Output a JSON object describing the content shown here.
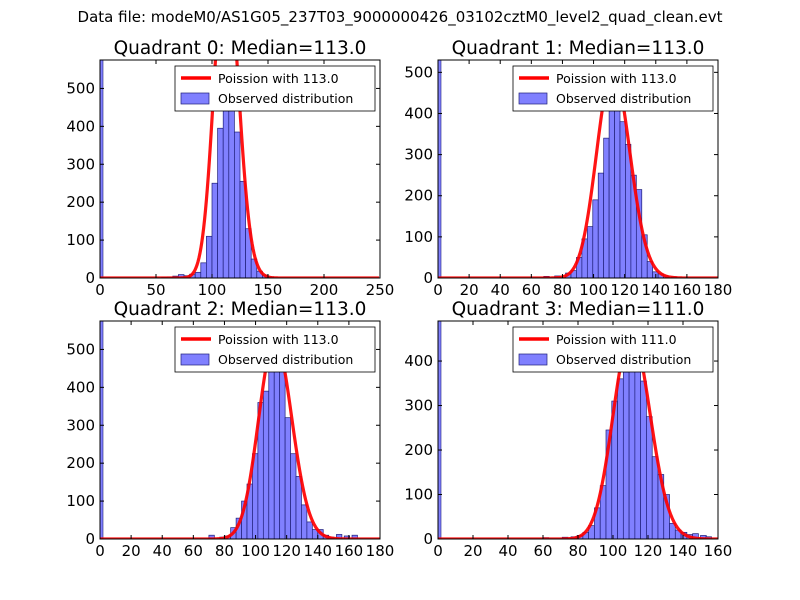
{
  "figure": {
    "suptitle": "Data file: modeM0/AS1G05_237T03_9000000426_03102cztM0_level2_quad_clean.evt",
    "colors": {
      "hist_fill": "#8080ff",
      "hist_edge": "#1f1f7a",
      "curve": "#ff0000",
      "text": "#000000",
      "background": "#ffffff"
    }
  },
  "chart_data": [
    {
      "type": "bar",
      "title": "Quadrant 0: Median=113.0",
      "xlim": [
        0,
        250
      ],
      "ylim": [
        0,
        575
      ],
      "xticks": [
        0,
        50,
        100,
        150,
        200,
        250
      ],
      "yticks": [
        0,
        100,
        200,
        300,
        400,
        500
      ],
      "legend": [
        "Poission with 113.0",
        "Observed distribution"
      ],
      "legend_location": "upper right",
      "poisson_mean": 113.0,
      "poisson_scale": 22920,
      "bin_width": 5,
      "edge_bar": 575,
      "bins": [
        {
          "x": 55,
          "v": 2
        },
        {
          "x": 60,
          "v": 3
        },
        {
          "x": 65,
          "v": 5
        },
        {
          "x": 70,
          "v": 9
        },
        {
          "x": 75,
          "v": 6
        },
        {
          "x": 80,
          "v": 10
        },
        {
          "x": 85,
          "v": 15
        },
        {
          "x": 90,
          "v": 40
        },
        {
          "x": 95,
          "v": 110
        },
        {
          "x": 100,
          "v": 250
        },
        {
          "x": 105,
          "v": 395
        },
        {
          "x": 110,
          "v": 545
        },
        {
          "x": 115,
          "v": 500
        },
        {
          "x": 120,
          "v": 385
        },
        {
          "x": 125,
          "v": 255
        },
        {
          "x": 130,
          "v": 130
        },
        {
          "x": 135,
          "v": 50
        },
        {
          "x": 140,
          "v": 18
        },
        {
          "x": 145,
          "v": 8
        },
        {
          "x": 150,
          "v": 3
        }
      ]
    },
    {
      "type": "bar",
      "title": "Quadrant 1: Median=113.0",
      "xlim": [
        0,
        180
      ],
      "ylim": [
        0,
        530
      ],
      "xticks": [
        0,
        20,
        40,
        60,
        80,
        100,
        120,
        140,
        160,
        180
      ],
      "yticks": [
        0,
        100,
        200,
        300,
        400,
        500
      ],
      "legend": [
        "Poission with 113.0",
        "Observed distribution"
      ],
      "legend_location": "upper right",
      "poisson_mean": 113.0,
      "poisson_scale": 13500,
      "bin_width": 3.5,
      "edge_bar": 530,
      "bins": [
        {
          "x": 68,
          "v": 4
        },
        {
          "x": 75,
          "v": 5
        },
        {
          "x": 82,
          "v": 12
        },
        {
          "x": 85.5,
          "v": 18
        },
        {
          "x": 89,
          "v": 50
        },
        {
          "x": 92.5,
          "v": 95
        },
        {
          "x": 96,
          "v": 125
        },
        {
          "x": 99.5,
          "v": 190
        },
        {
          "x": 103,
          "v": 255
        },
        {
          "x": 106.5,
          "v": 340
        },
        {
          "x": 110,
          "v": 445
        },
        {
          "x": 113.5,
          "v": 510
        },
        {
          "x": 117,
          "v": 380
        },
        {
          "x": 120.5,
          "v": 325
        },
        {
          "x": 124,
          "v": 250
        },
        {
          "x": 127.5,
          "v": 215
        },
        {
          "x": 131,
          "v": 105
        },
        {
          "x": 134.5,
          "v": 40
        },
        {
          "x": 138,
          "v": 15
        },
        {
          "x": 141.5,
          "v": 10
        },
        {
          "x": 145,
          "v": 5
        },
        {
          "x": 150,
          "v": 3
        }
      ]
    },
    {
      "type": "bar",
      "title": "Quadrant 2: Median=113.0",
      "xlim": [
        0,
        180
      ],
      "ylim": [
        0,
        575
      ],
      "xticks": [
        0,
        20,
        40,
        60,
        80,
        100,
        120,
        140,
        160,
        180
      ],
      "yticks": [
        0,
        100,
        200,
        300,
        400,
        500
      ],
      "legend": [
        "Poission with 113.0",
        "Observed distribution"
      ],
      "legend_location": "upper right",
      "poisson_mean": 113.0,
      "poisson_scale": 14000,
      "bin_width": 3.5,
      "edge_bar": 575,
      "bins": [
        {
          "x": 70,
          "v": 10
        },
        {
          "x": 77,
          "v": 5
        },
        {
          "x": 80.5,
          "v": 8
        },
        {
          "x": 84,
          "v": 30
        },
        {
          "x": 87.5,
          "v": 55
        },
        {
          "x": 91,
          "v": 100
        },
        {
          "x": 94.5,
          "v": 145
        },
        {
          "x": 98,
          "v": 225
        },
        {
          "x": 101.5,
          "v": 360
        },
        {
          "x": 105,
          "v": 390
        },
        {
          "x": 108.5,
          "v": 465
        },
        {
          "x": 112,
          "v": 525
        },
        {
          "x": 115.5,
          "v": 465
        },
        {
          "x": 119,
          "v": 320
        },
        {
          "x": 122.5,
          "v": 225
        },
        {
          "x": 126,
          "v": 165
        },
        {
          "x": 129.5,
          "v": 90
        },
        {
          "x": 133,
          "v": 45
        },
        {
          "x": 136.5,
          "v": 25
        },
        {
          "x": 140,
          "v": 25
        },
        {
          "x": 143.5,
          "v": 10
        },
        {
          "x": 147,
          "v": 5
        },
        {
          "x": 152,
          "v": 12
        },
        {
          "x": 157,
          "v": 8
        },
        {
          "x": 162,
          "v": 10
        }
      ]
    },
    {
      "type": "bar",
      "title": "Quadrant 3: Median=111.0",
      "xlim": [
        0,
        160
      ],
      "ylim": [
        0,
        490
      ],
      "xticks": [
        0,
        20,
        40,
        60,
        80,
        100,
        120,
        140,
        160
      ],
      "yticks": [
        0,
        100,
        200,
        300,
        400
      ],
      "legend": [
        "Poission with 111.0",
        "Observed distribution"
      ],
      "legend_location": "upper right",
      "poisson_mean": 111.0,
      "poisson_scale": 12250,
      "bin_width": 3.3,
      "edge_bar": 490,
      "bins": [
        {
          "x": 60,
          "v": 3
        },
        {
          "x": 71,
          "v": 4
        },
        {
          "x": 76,
          "v": 5
        },
        {
          "x": 79.5,
          "v": 8
        },
        {
          "x": 82.8,
          "v": 15
        },
        {
          "x": 86.1,
          "v": 30
        },
        {
          "x": 89.4,
          "v": 70
        },
        {
          "x": 92.7,
          "v": 120
        },
        {
          "x": 96,
          "v": 245
        },
        {
          "x": 99.3,
          "v": 310
        },
        {
          "x": 102.6,
          "v": 360
        },
        {
          "x": 105.9,
          "v": 375
        },
        {
          "x": 109.2,
          "v": 460
        },
        {
          "x": 112.5,
          "v": 405
        },
        {
          "x": 115.8,
          "v": 355
        },
        {
          "x": 119.1,
          "v": 275
        },
        {
          "x": 122.4,
          "v": 185
        },
        {
          "x": 125.7,
          "v": 145
        },
        {
          "x": 129,
          "v": 100
        },
        {
          "x": 132.3,
          "v": 35
        },
        {
          "x": 135.6,
          "v": 20
        },
        {
          "x": 138.9,
          "v": 15
        },
        {
          "x": 142.2,
          "v": 10
        },
        {
          "x": 145.5,
          "v": 12
        },
        {
          "x": 150,
          "v": 8
        },
        {
          "x": 153,
          "v": 5
        }
      ]
    }
  ]
}
